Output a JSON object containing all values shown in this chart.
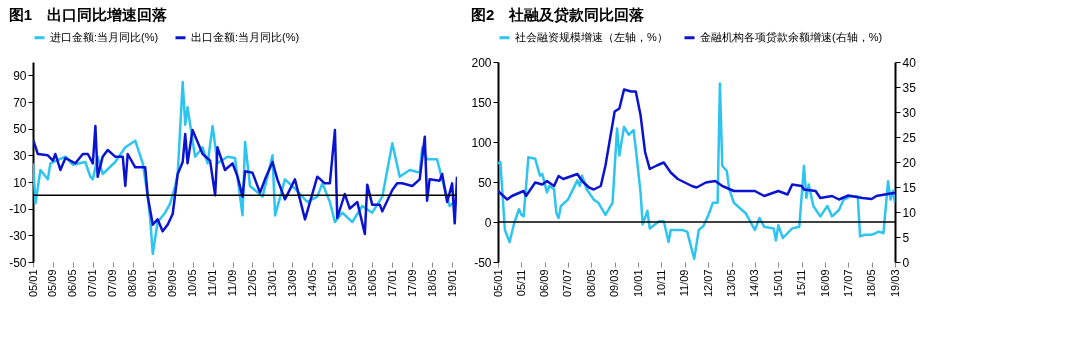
{
  "chart_data": [
    {
      "type": "line",
      "title": "图1　出口同比增速回落",
      "xlim": [
        "2005-01",
        "2019-03"
      ],
      "xticks": [
        {
          "value": "2005-01",
          "label": "05/01"
        },
        {
          "value": "2005-09",
          "label": "05/09"
        },
        {
          "value": "2006-05",
          "label": "06/05"
        },
        {
          "value": "2007-01",
          "label": "07/01"
        },
        {
          "value": "2007-09",
          "label": "07/09"
        },
        {
          "value": "2008-05",
          "label": "08/05"
        },
        {
          "value": "2009-01",
          "label": "09/01"
        },
        {
          "value": "2009-09",
          "label": "09/09"
        },
        {
          "value": "2010-05",
          "label": "10/05"
        },
        {
          "value": "2011-01",
          "label": "11/01"
        },
        {
          "value": "2011-09",
          "label": "11/09"
        },
        {
          "value": "2012-05",
          "label": "12/05"
        },
        {
          "value": "2013-01",
          "label": "13/01"
        },
        {
          "value": "2013-09",
          "label": "13/09"
        },
        {
          "value": "2014-05",
          "label": "14/05"
        },
        {
          "value": "2015-01",
          "label": "15/01"
        },
        {
          "value": "2015-09",
          "label": "15/09"
        },
        {
          "value": "2016-05",
          "label": "16/05"
        },
        {
          "value": "2017-01",
          "label": "17/01"
        },
        {
          "value": "2017-09",
          "label": "17/09"
        },
        {
          "value": "2018-05",
          "label": "18/05"
        },
        {
          "value": "2019-01",
          "label": "19/01"
        }
      ],
      "ylim": [
        -50,
        100
      ],
      "yticks": [
        -50,
        -30,
        -10,
        10,
        30,
        50,
        70,
        90
      ],
      "legend": "top",
      "grid": false,
      "ref_lines": [
        {
          "axis": "y",
          "value": 0,
          "color": "#000000"
        }
      ],
      "series": [
        {
          "name": "进口金额:当月同比(%)",
          "color": "#2ec4f0",
          "x": [
            "2005-01",
            "2005-02",
            "2005-04",
            "2005-07",
            "2005-08",
            "2006-02",
            "2006-05",
            "2006-10",
            "2006-12",
            "2007-01",
            "2007-03",
            "2007-05",
            "2007-10",
            "2008-02",
            "2008-06",
            "2008-09",
            "2008-11",
            "2008-12",
            "2009-01",
            "2009-03",
            "2009-06",
            "2009-08",
            "2009-10",
            "2009-11",
            "2010-01",
            "2010-02",
            "2010-03",
            "2010-06",
            "2010-09",
            "2010-11",
            "2011-01",
            "2011-03",
            "2011-07",
            "2011-10",
            "2012-01",
            "2012-02",
            "2012-04",
            "2012-09",
            "2013-01",
            "2013-02",
            "2013-06",
            "2013-10",
            "2014-03",
            "2014-07",
            "2014-09",
            "2014-12",
            "2015-02",
            "2015-05",
            "2015-09",
            "2016-01",
            "2016-05",
            "2016-09",
            "2017-01",
            "2017-04",
            "2017-08",
            "2017-12",
            "2018-01",
            "2018-03",
            "2018-07",
            "2018-09",
            "2018-12",
            "2019-03"
          ],
          "values": [
            24,
            -6,
            19,
            12,
            24,
            29,
            23,
            25,
            14,
            12,
            29,
            16,
            25,
            36,
            41,
            24,
            -1,
            -18,
            -44,
            -20,
            -13,
            -6,
            7,
            16,
            85,
            53,
            66,
            29,
            36,
            24,
            52,
            24,
            29,
            28,
            -15,
            40,
            7,
            -1,
            30,
            -15,
            12,
            5,
            -5,
            -1,
            9,
            -5,
            -20,
            -13,
            -20,
            -8,
            -13,
            -1,
            39,
            14,
            19,
            17,
            36,
            27,
            27,
            12,
            -8,
            -3
          ]
        },
        {
          "name": "出口金额:当月同比(%)",
          "color": "#0a14d0",
          "x": [
            "2005-01",
            "2005-03",
            "2005-07",
            "2005-09",
            "2005-10",
            "2005-12",
            "2006-02",
            "2006-06",
            "2006-09",
            "2006-11",
            "2007-01",
            "2007-02",
            "2007-03",
            "2007-05",
            "2007-07",
            "2007-10",
            "2008-01",
            "2008-02",
            "2008-03",
            "2008-06",
            "2008-10",
            "2008-11",
            "2009-01",
            "2009-03",
            "2009-05",
            "2009-07",
            "2009-09",
            "2009-11",
            "2010-01",
            "2010-02",
            "2010-03",
            "2010-05",
            "2010-09",
            "2010-12",
            "2011-02",
            "2011-03",
            "2011-06",
            "2011-09",
            "2011-11",
            "2012-01",
            "2012-02",
            "2012-05",
            "2012-08",
            "2012-10",
            "2013-01",
            "2013-03",
            "2013-06",
            "2013-10",
            "2014-02",
            "2014-07",
            "2014-10",
            "2014-12",
            "2015-02",
            "2015-03",
            "2015-06",
            "2015-08",
            "2015-11",
            "2016-02",
            "2016-03",
            "2016-05",
            "2016-08",
            "2016-09",
            "2017-01",
            "2017-03",
            "2017-05",
            "2017-09",
            "2017-12",
            "2018-02",
            "2018-03",
            "2018-04",
            "2018-08",
            "2018-09",
            "2018-11",
            "2019-01",
            "2019-02",
            "2019-03"
          ],
          "values": [
            42,
            31,
            30,
            26,
            31,
            19,
            28,
            24,
            31,
            31,
            24,
            52,
            14,
            29,
            34,
            29,
            29,
            7,
            31,
            21,
            21,
            -1,
            -22,
            -18,
            -27,
            -22,
            -14,
            16,
            25,
            46,
            24,
            49,
            31,
            26,
            0,
            36,
            19,
            24,
            14,
            -1,
            18,
            17,
            2,
            12,
            25,
            12,
            -3,
            12,
            -18,
            14,
            9,
            9,
            49,
            -17,
            1,
            -10,
            -5,
            -29,
            8,
            -7,
            -7,
            -12,
            4,
            9,
            9,
            7,
            12,
            44,
            -4,
            12,
            11,
            16,
            -5,
            9,
            -21,
            14
          ]
        }
      ]
    },
    {
      "type": "line",
      "title": "图2　社融及贷款同比回落",
      "xlim": [
        "2005-01",
        "2019-03"
      ],
      "xticks": [
        {
          "value": "2005-01",
          "label": "05/01"
        },
        {
          "value": "2005-11",
          "label": "05/11"
        },
        {
          "value": "2006-09",
          "label": "06/09"
        },
        {
          "value": "2007-07",
          "label": "07/07"
        },
        {
          "value": "2008-05",
          "label": "08/05"
        },
        {
          "value": "2009-03",
          "label": "09/03"
        },
        {
          "value": "2010-01",
          "label": "10/01"
        },
        {
          "value": "2010-11",
          "label": "10/11"
        },
        {
          "value": "2011-09",
          "label": "11/09"
        },
        {
          "value": "2012-07",
          "label": "12/07"
        },
        {
          "value": "2013-05",
          "label": "13/05"
        },
        {
          "value": "2014-03",
          "label": "14/03"
        },
        {
          "value": "2015-01",
          "label": "15/01"
        },
        {
          "value": "2015-11",
          "label": "15/11"
        },
        {
          "value": "2016-09",
          "label": "16/09"
        },
        {
          "value": "2017-07",
          "label": "17/07"
        },
        {
          "value": "2018-05",
          "label": "18/05"
        },
        {
          "value": "2019-03",
          "label": "19/03"
        }
      ],
      "ylim": [
        -50,
        200
      ],
      "yticks": [
        -50,
        0,
        50,
        100,
        150,
        200
      ],
      "y2lim": [
        0,
        40
      ],
      "y2ticks": [
        0,
        5,
        10,
        15,
        20,
        25,
        30,
        35,
        40
      ],
      "legend": "top",
      "grid": false,
      "ref_lines": [
        {
          "axis": "y",
          "value": 0,
          "color": "#000000"
        }
      ],
      "series": [
        {
          "name": "社会融资规模增速（左轴，%）",
          "color": "#2ec4f0",
          "x": [
            "2005-01",
            "2005-02",
            "2005-04",
            "2005-06",
            "2005-08",
            "2005-10",
            "2005-11",
            "2005-12",
            "2006-02",
            "2006-05",
            "2006-07",
            "2006-08",
            "2006-10",
            "2006-11",
            "2007-01",
            "2007-02",
            "2007-03",
            "2007-04",
            "2007-07",
            "2007-11",
            "2007-12",
            "2008-01",
            "2008-03",
            "2008-06",
            "2008-08",
            "2008-11",
            "2009-02",
            "2009-04",
            "2009-05",
            "2009-07",
            "2009-09",
            "2009-11",
            "2009-12",
            "2010-02",
            "2010-03",
            "2010-05",
            "2010-06",
            "2010-10",
            "2010-12",
            "2011-02",
            "2011-03",
            "2011-08",
            "2011-10",
            "2012-01",
            "2012-03",
            "2012-05",
            "2012-07",
            "2012-09",
            "2012-11",
            "2012-12",
            "2013-01",
            "2013-03",
            "2013-04",
            "2013-06",
            "2013-11",
            "2014-03",
            "2014-05",
            "2014-07",
            "2014-11",
            "2014-12",
            "2015-01",
            "2015-03",
            "2015-07",
            "2015-10",
            "2015-12",
            "2016-01",
            "2016-02",
            "2016-04",
            "2016-07",
            "2016-10",
            "2016-12",
            "2017-03",
            "2017-05",
            "2017-08",
            "2017-11",
            "2017-12",
            "2018-02",
            "2018-05",
            "2018-08",
            "2018-10",
            "2018-12",
            "2019-01",
            "2019-02",
            "2019-03"
          ],
          "values": [
            73,
            75,
            -10,
            -25,
            -1,
            16,
            9,
            7,
            81,
            79,
            58,
            60,
            37,
            45,
            41,
            11,
            5,
            20,
            28,
            52,
            45,
            58,
            41,
            28,
            24,
            9,
            24,
            117,
            83,
            119,
            109,
            115,
            92,
            37,
            -3,
            14,
            -8,
            1,
            1,
            -25,
            -10,
            -10,
            -12,
            -46,
            -10,
            -5,
            8,
            24,
            24,
            173,
            70,
            64,
            41,
            24,
            11,
            -10,
            5,
            -6,
            -8,
            -23,
            -4,
            -20,
            -8,
            -6,
            70,
            30,
            47,
            20,
            7,
            20,
            7,
            15,
            28,
            32,
            32,
            -18,
            -16,
            -16,
            -12,
            -14,
            51,
            28,
            39,
            24
          ]
        },
        {
          "name": "金融机构各项贷款余额增速(右轴，%)",
          "color": "#0a14d0",
          "axis": "y2",
          "x": [
            "2005-01",
            "2005-05",
            "2005-07",
            "2005-12",
            "2006-01",
            "2006-05",
            "2006-08",
            "2006-10",
            "2007-01",
            "2007-03",
            "2007-05",
            "2007-11",
            "2008-01",
            "2008-04",
            "2008-06",
            "2008-09",
            "2008-11",
            "2009-03",
            "2009-05",
            "2009-07",
            "2009-10",
            "2009-12",
            "2010-02",
            "2010-04",
            "2010-06",
            "2010-09",
            "2010-12",
            "2011-03",
            "2011-06",
            "2011-12",
            "2012-02",
            "2012-06",
            "2012-10",
            "2013-01",
            "2013-06",
            "2014-03",
            "2014-07",
            "2015-01",
            "2015-05",
            "2015-07",
            "2015-11",
            "2015-12",
            "2016-05",
            "2016-07",
            "2016-12",
            "2017-03",
            "2017-07",
            "2018-01",
            "2018-05",
            "2018-07",
            "2019-01",
            "2019-03"
          ],
          "values": [
            14.2,
            12.5,
            13.2,
            14.2,
            13.2,
            15.9,
            15.5,
            16.2,
            15.2,
            17.2,
            16.6,
            17.6,
            16.2,
            14.9,
            14.5,
            15.2,
            19.3,
            30.1,
            30.7,
            34.5,
            34.1,
            34.1,
            29.4,
            22.0,
            18.6,
            19.3,
            19.9,
            17.9,
            16.6,
            15.2,
            14.9,
            15.9,
            16.2,
            15.2,
            14.2,
            14.2,
            13.2,
            14.2,
            13.5,
            15.5,
            15.2,
            14.5,
            14.2,
            12.8,
            13.2,
            12.5,
            13.3,
            12.8,
            12.6,
            13.2,
            13.7,
            13.8
          ]
        }
      ]
    }
  ]
}
